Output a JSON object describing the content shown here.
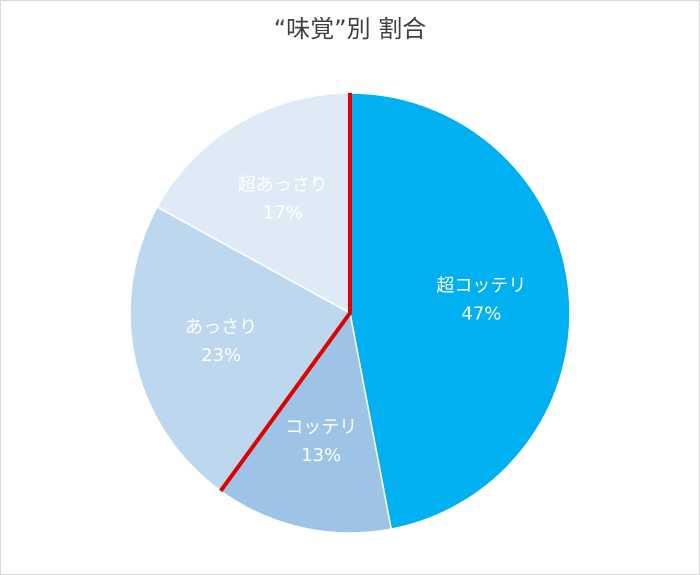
{
  "chart_data": {
    "type": "pie",
    "title": "“味覚”別 割合",
    "categories": [
      "超コッテリ",
      "コッテリ",
      "あっさり",
      "超あっさり"
    ],
    "values": [
      47,
      13,
      23,
      17
    ],
    "value_labels": [
      "47%",
      "13%",
      "23%",
      "17%"
    ],
    "colors": [
      "#00b0f0",
      "#9dc3e6",
      "#bdd7ee",
      "#deebf7"
    ]
  }
}
